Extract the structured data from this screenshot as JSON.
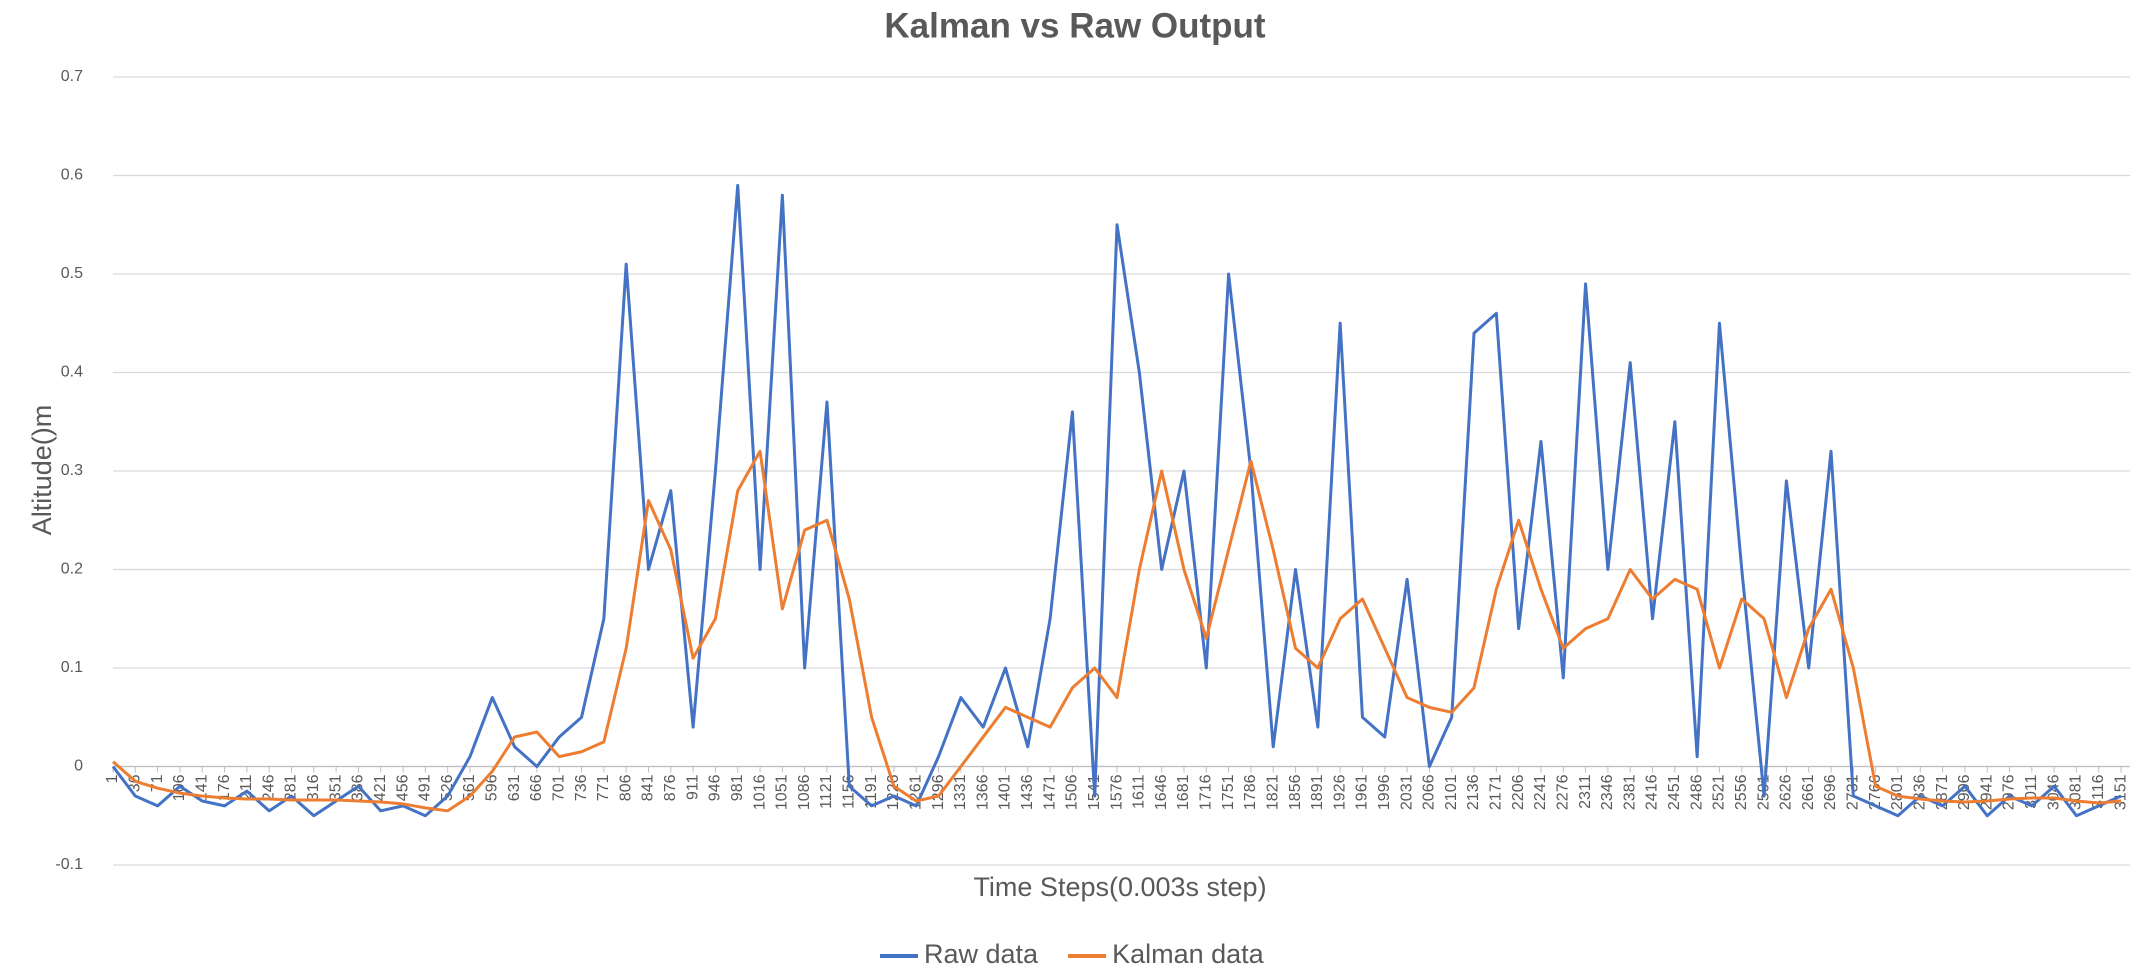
{
  "chart_data": {
    "type": "line",
    "title": "Kalman vs Raw Output",
    "x_label": "Time Steps(0.003s step)",
    "y_label": "Altitude()m",
    "xlim": [
      1,
      3165
    ],
    "ylim": [
      -0.1,
      0.7
    ],
    "yticks": [
      -0.1,
      0,
      0.1,
      0.2,
      0.3,
      0.4,
      0.5,
      0.6,
      0.7
    ],
    "xticks": [
      1,
      36,
      71,
      106,
      141,
      176,
      211,
      246,
      281,
      316,
      351,
      386,
      421,
      456,
      491,
      526,
      561,
      596,
      631,
      666,
      701,
      736,
      771,
      806,
      841,
      876,
      911,
      946,
      981,
      1016,
      1051,
      1086,
      1121,
      1156,
      1191,
      1226,
      1261,
      1296,
      1331,
      1366,
      1401,
      1436,
      1471,
      1506,
      1541,
      1576,
      1611,
      1646,
      1681,
      1716,
      1751,
      1786,
      1821,
      1856,
      1891,
      1926,
      1961,
      1996,
      2031,
      2066,
      2101,
      2136,
      2171,
      2206,
      2241,
      2276,
      2311,
      2346,
      2381,
      2416,
      2451,
      2486,
      2521,
      2556,
      2591,
      2626,
      2661,
      2696,
      2731,
      2766,
      2801,
      2836,
      2871,
      2906,
      2941,
      2976,
      3011,
      3046,
      3081,
      3116,
      3151
    ],
    "grid": true,
    "legend": "bottom",
    "x": [
      1,
      36,
      71,
      106,
      141,
      176,
      211,
      246,
      281,
      316,
      351,
      386,
      421,
      456,
      491,
      526,
      561,
      596,
      631,
      666,
      701,
      736,
      771,
      806,
      841,
      876,
      911,
      946,
      981,
      1016,
      1051,
      1086,
      1121,
      1156,
      1191,
      1226,
      1261,
      1296,
      1331,
      1366,
      1401,
      1436,
      1471,
      1506,
      1541,
      1576,
      1611,
      1646,
      1681,
      1716,
      1751,
      1786,
      1821,
      1856,
      1891,
      1926,
      1961,
      1996,
      2031,
      2066,
      2101,
      2136,
      2171,
      2206,
      2241,
      2276,
      2311,
      2346,
      2381,
      2416,
      2451,
      2486,
      2521,
      2556,
      2591,
      2626,
      2661,
      2696,
      2731,
      2766,
      2801,
      2836,
      2871,
      2906,
      2941,
      2976,
      3011,
      3046,
      3081,
      3116,
      3151
    ],
    "series": [
      {
        "name": "Raw data",
        "color": "#4472c4",
        "values": [
          0.0,
          -0.03,
          -0.04,
          -0.02,
          -0.035,
          -0.04,
          -0.025,
          -0.045,
          -0.03,
          -0.05,
          -0.035,
          -0.02,
          -0.045,
          -0.04,
          -0.05,
          -0.03,
          0.01,
          0.07,
          0.02,
          0.0,
          0.03,
          0.05,
          0.15,
          0.51,
          0.2,
          0.28,
          0.04,
          0.3,
          0.59,
          0.2,
          0.58,
          0.1,
          0.37,
          -0.02,
          -0.04,
          -0.03,
          -0.04,
          0.01,
          0.07,
          0.04,
          0.1,
          0.02,
          0.15,
          0.36,
          -0.03,
          0.55,
          0.4,
          0.2,
          0.3,
          0.1,
          0.5,
          0.3,
          0.02,
          0.2,
          0.04,
          0.45,
          0.05,
          0.03,
          0.19,
          0.0,
          0.05,
          0.44,
          0.46,
          0.14,
          0.33,
          0.09,
          0.49,
          0.2,
          0.41,
          0.15,
          0.35,
          0.01,
          0.45,
          0.2,
          -0.03,
          0.29,
          0.1,
          0.32,
          -0.03,
          -0.04,
          -0.05,
          -0.03,
          -0.04,
          -0.02,
          -0.05,
          -0.03,
          -0.04,
          -0.02,
          -0.05,
          -0.04,
          -0.03
        ]
      },
      {
        "name": "Kalman data",
        "color": "#ed7d31",
        "values": [
          0.005,
          -0.015,
          -0.022,
          -0.027,
          -0.03,
          -0.032,
          -0.033,
          -0.033,
          -0.034,
          -0.034,
          -0.034,
          -0.035,
          -0.036,
          -0.038,
          -0.042,
          -0.045,
          -0.03,
          -0.005,
          0.03,
          0.035,
          0.01,
          0.015,
          0.025,
          0.12,
          0.27,
          0.22,
          0.11,
          0.15,
          0.28,
          0.32,
          0.16,
          0.24,
          0.25,
          0.17,
          0.05,
          -0.02,
          -0.035,
          -0.03,
          0.0,
          0.03,
          0.06,
          0.05,
          0.04,
          0.08,
          0.1,
          0.07,
          0.2,
          0.3,
          0.2,
          0.13,
          0.22,
          0.31,
          0.22,
          0.12,
          0.1,
          0.15,
          0.17,
          0.12,
          0.07,
          0.06,
          0.055,
          0.08,
          0.18,
          0.25,
          0.18,
          0.12,
          0.14,
          0.15,
          0.2,
          0.17,
          0.19,
          0.18,
          0.1,
          0.17,
          0.15,
          0.07,
          0.14,
          0.18,
          0.1,
          -0.02,
          -0.03,
          -0.033,
          -0.035,
          -0.036,
          -0.035,
          -0.033,
          -0.032,
          -0.032,
          -0.035,
          -0.037,
          -0.035
        ]
      }
    ]
  }
}
